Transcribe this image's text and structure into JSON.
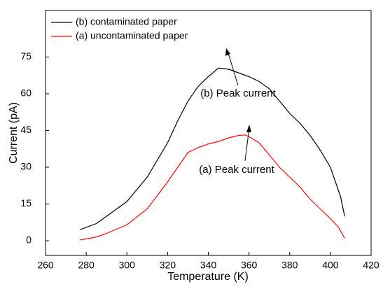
{
  "chart_data": {
    "type": "line",
    "x_label": "Temperature (K)",
    "y_label": "Current (pA)",
    "xlim": [
      260,
      420
    ],
    "xticks": [
      260,
      280,
      300,
      320,
      340,
      360,
      380,
      400,
      420
    ],
    "ylim": [
      -6,
      94
    ],
    "yticks": [
      0,
      15,
      30,
      45,
      60,
      75
    ],
    "grid": false,
    "legend": "upper-left",
    "annotations": [
      "(b) Peak current",
      "(a) Peak current"
    ],
    "series": [
      {
        "name": "(b) contaminated paper",
        "color": "#000000",
        "x": [
          277,
          285,
          290,
          300,
          310,
          320,
          325,
          330,
          335,
          340,
          345,
          350,
          355,
          360,
          365,
          370,
          375,
          380,
          385,
          390,
          395,
          400,
          405,
          407
        ],
        "values": [
          4.5,
          7,
          10,
          16,
          26,
          40,
          49,
          57,
          63,
          67,
          70.5,
          70,
          68.5,
          67,
          65,
          62,
          57,
          52,
          48,
          43,
          37,
          30,
          18,
          10
        ]
      },
      {
        "name": "(a) uncontaminated paper",
        "color": "#ff0000",
        "x": [
          277,
          285,
          290,
          300,
          310,
          320,
          325,
          330,
          335,
          340,
          345,
          350,
          355,
          358,
          360,
          365,
          370,
          375,
          380,
          385,
          390,
          395,
          400,
          404,
          407
        ],
        "values": [
          0.3,
          1.5,
          3,
          6.5,
          13,
          24,
          30,
          36,
          38,
          39.5,
          40.5,
          42,
          43,
          43.2,
          42.5,
          40,
          35,
          30,
          26,
          22,
          17,
          13,
          9,
          5.5,
          1
        ]
      }
    ]
  }
}
